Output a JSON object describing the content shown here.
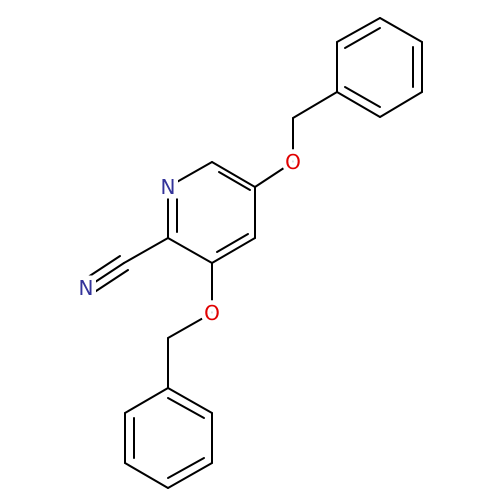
{
  "atoms": [
    {
      "label": "N"
    },
    {
      "label": "N"
    },
    {
      "label": "O"
    },
    {
      "label": "O"
    }
  ]
}
